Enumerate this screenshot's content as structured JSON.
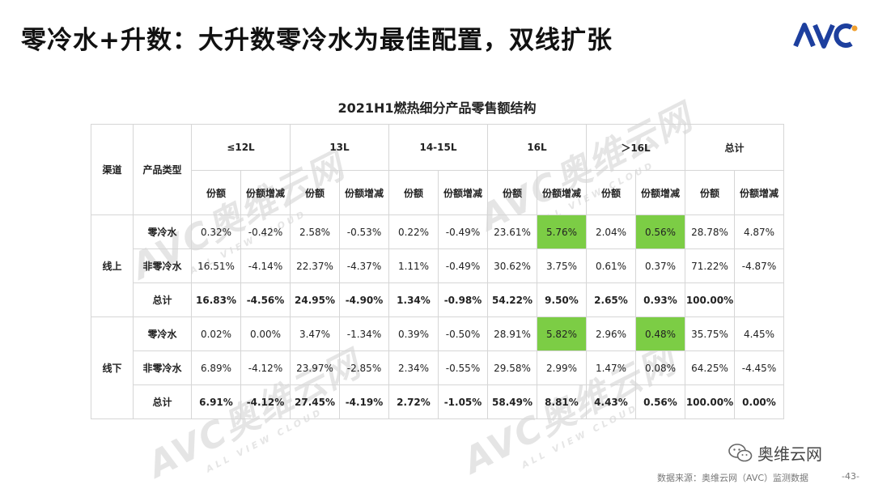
{
  "header": {
    "title": "零冷水+升数：大升数零冷水为最佳配置，双线扩张",
    "logo_text": "AVC"
  },
  "watermark": {
    "text": "AVC奥维云网",
    "subtext": "ALL VIEW CLOUD"
  },
  "table": {
    "title": "2021H1燃热细分产品零售额结构",
    "col_channel": "渠道",
    "col_type": "产品类型",
    "groups": [
      "≤12L",
      "13L",
      "14-15L",
      "16L",
      "＞16L",
      "总计"
    ],
    "sub_share": "份额",
    "sub_change": "份额增减",
    "channels": [
      {
        "name": "线上",
        "rows": [
          {
            "type": "零冷水",
            "cells": [
              "0.32%",
              "-0.42%",
              "2.58%",
              "-0.53%",
              "0.22%",
              "-0.49%",
              "23.61%",
              "5.76%",
              "2.04%",
              "0.56%",
              "28.78%",
              "4.87%"
            ]
          },
          {
            "type": "非零冷水",
            "cells": [
              "16.51%",
              "-4.14%",
              "22.37%",
              "-4.37%",
              "1.11%",
              "-0.49%",
              "30.62%",
              "3.75%",
              "0.61%",
              "0.37%",
              "71.22%",
              "-4.87%"
            ]
          },
          {
            "type": "总计",
            "cells": [
              "16.83%",
              "-4.56%",
              "24.95%",
              "-4.90%",
              "1.34%",
              "-0.98%",
              "54.22%",
              "9.50%",
              "2.65%",
              "0.93%",
              "100.00%",
              ""
            ]
          }
        ]
      },
      {
        "name": "线下",
        "rows": [
          {
            "type": "零冷水",
            "cells": [
              "0.02%",
              "0.00%",
              "3.47%",
              "-1.34%",
              "0.39%",
              "-0.50%",
              "28.91%",
              "5.82%",
              "2.96%",
              "0.48%",
              "35.75%",
              "4.45%"
            ]
          },
          {
            "type": "非零冷水",
            "cells": [
              "6.89%",
              "-4.12%",
              "23.97%",
              "-2.85%",
              "2.34%",
              "-0.55%",
              "29.58%",
              "2.99%",
              "1.47%",
              "0.08%",
              "64.25%",
              "-4.45%"
            ]
          },
          {
            "type": "总计",
            "cells": [
              "6.91%",
              "-4.12%",
              "27.45%",
              "-4.19%",
              "2.72%",
              "-1.05%",
              "58.49%",
              "8.81%",
              "4.43%",
              "0.56%",
              "100.00%",
              "0.00%"
            ]
          }
        ]
      }
    ],
    "highlight_color": "#7ccd45"
  },
  "footer": {
    "wechat_label": "奥维云网",
    "source": "数据来源：奥维云网（AVC）监测数据",
    "page": "-43-"
  },
  "colors": {
    "logo_blue": "#1d3f9e",
    "logo_orange": "#f0a030"
  }
}
